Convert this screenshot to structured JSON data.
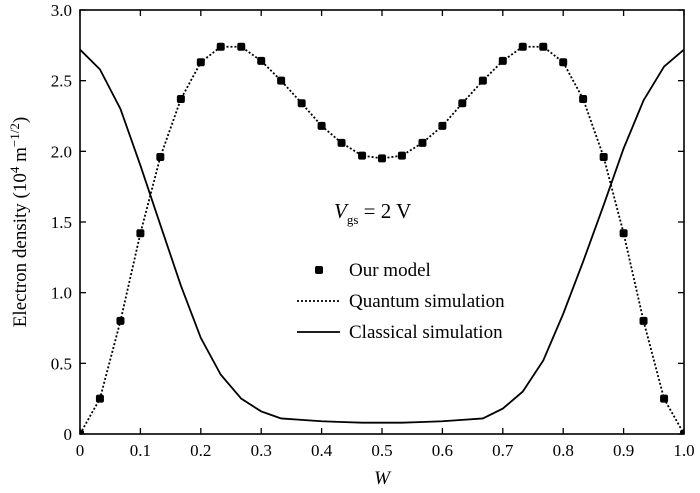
{
  "chart_data": {
    "type": "line",
    "xlabel": "W",
    "ylabel": "Electron density (10⁴ m⁻¹ᐟ²)",
    "ylabel_parts": {
      "main": "Electron density (10",
      "exp1": "4",
      "mid": " m",
      "exp2": "−1/2",
      "end": ")"
    },
    "xlim": [
      0,
      1.0
    ],
    "ylim": [
      0,
      3.0
    ],
    "xticks": [
      0,
      0.1,
      0.2,
      0.3,
      0.4,
      0.5,
      0.6,
      0.7,
      0.8,
      0.9,
      1.0
    ],
    "xtick_labels": [
      "0",
      "0.1",
      "0.2",
      "0.3",
      "0.4",
      "0.5",
      "0.6",
      "0.7",
      "0.8",
      "0.9",
      "1.0"
    ],
    "yticks": [
      0,
      0.5,
      1.0,
      1.5,
      2.0,
      2.5,
      3.0
    ],
    "ytick_labels": [
      "0",
      "0.5",
      "1.0",
      "1.5",
      "2.0",
      "2.5",
      "3.0"
    ],
    "grid": false,
    "legend_position": "center-right",
    "annotation": {
      "var": "V",
      "sub": "gs",
      "rest": " = 2 V"
    },
    "series": [
      {
        "name": "Our model",
        "style": "markers",
        "x": [
          0,
          0.033,
          0.067,
          0.1,
          0.133,
          0.167,
          0.2,
          0.233,
          0.267,
          0.3,
          0.333,
          0.367,
          0.4,
          0.433,
          0.467,
          0.5,
          0.533,
          0.567,
          0.6,
          0.633,
          0.667,
          0.7,
          0.733,
          0.767,
          0.8,
          0.833,
          0.867,
          0.9,
          0.933,
          0.967,
          1.0
        ],
        "y": [
          0,
          0.25,
          0.8,
          1.42,
          1.96,
          2.37,
          2.63,
          2.74,
          2.74,
          2.64,
          2.5,
          2.34,
          2.18,
          2.06,
          1.97,
          1.95,
          1.97,
          2.06,
          2.18,
          2.34,
          2.5,
          2.64,
          2.74,
          2.74,
          2.63,
          2.37,
          1.96,
          1.42,
          0.8,
          0.25,
          0
        ]
      },
      {
        "name": "Quantum simulation",
        "style": "dotted",
        "x": [
          0,
          0.033,
          0.067,
          0.1,
          0.133,
          0.167,
          0.2,
          0.233,
          0.267,
          0.3,
          0.333,
          0.367,
          0.4,
          0.433,
          0.467,
          0.5,
          0.533,
          0.567,
          0.6,
          0.633,
          0.667,
          0.7,
          0.733,
          0.767,
          0.8,
          0.833,
          0.867,
          0.9,
          0.933,
          0.967,
          1.0
        ],
        "y": [
          0,
          0.25,
          0.8,
          1.42,
          1.96,
          2.37,
          2.63,
          2.74,
          2.74,
          2.64,
          2.5,
          2.34,
          2.18,
          2.06,
          1.97,
          1.95,
          1.97,
          2.06,
          2.18,
          2.34,
          2.5,
          2.64,
          2.74,
          2.74,
          2.63,
          2.37,
          1.96,
          1.42,
          0.8,
          0.25,
          0
        ]
      },
      {
        "name": "Classical simulation",
        "style": "solid",
        "x": [
          0,
          0.033,
          0.067,
          0.1,
          0.133,
          0.167,
          0.2,
          0.233,
          0.267,
          0.3,
          0.333,
          0.367,
          0.4,
          0.433,
          0.467,
          0.5,
          0.533,
          0.567,
          0.6,
          0.633,
          0.667,
          0.7,
          0.733,
          0.767,
          0.8,
          0.833,
          0.867,
          0.9,
          0.933,
          0.967,
          1.0
        ],
        "y": [
          2.72,
          2.58,
          2.3,
          1.9,
          1.48,
          1.05,
          0.68,
          0.42,
          0.25,
          0.16,
          0.11,
          0.1,
          0.09,
          0.085,
          0.08,
          0.08,
          0.08,
          0.085,
          0.09,
          0.1,
          0.11,
          0.18,
          0.3,
          0.52,
          0.85,
          1.22,
          1.62,
          2.02,
          2.36,
          2.6,
          2.72
        ]
      }
    ]
  }
}
